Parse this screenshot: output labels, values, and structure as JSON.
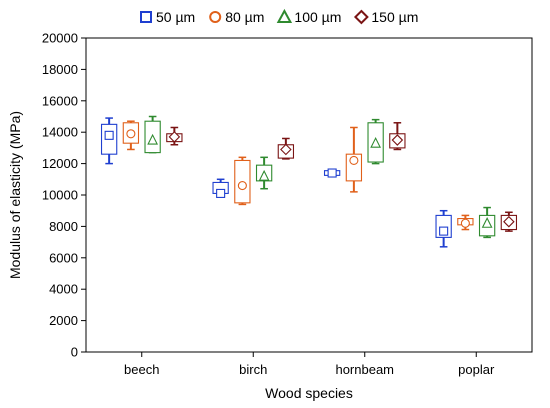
{
  "chart_data": {
    "type": "box",
    "title": "",
    "xlabel": "Wood species",
    "ylabel": "Modulus of elasticity  (MPa)",
    "ylim": [
      0,
      20000
    ],
    "yticks": [
      0,
      2000,
      4000,
      6000,
      8000,
      10000,
      12000,
      14000,
      16000,
      18000,
      20000
    ],
    "ytick_labels": [
      "0",
      "2000",
      "4000",
      "6000",
      "8000",
      "10000",
      "12000",
      "14000",
      "16000",
      "18000",
      "20000"
    ],
    "grid": false,
    "legend_position": "top",
    "categories": [
      "beech",
      "birch",
      "hornbeam",
      "poplar"
    ],
    "series": [
      {
        "name": "50 µm",
        "color": "#1f3fd0",
        "marker": "square",
        "boxes": [
          {
            "min": 12000,
            "q1": 12600,
            "median": 13800,
            "q3": 14500,
            "max": 14900
          },
          {
            "min": 10000,
            "q1": 10100,
            "median": 10100,
            "q3": 10800,
            "max": 11000
          },
          {
            "min": 11200,
            "q1": 11250,
            "median": 11400,
            "q3": 11550,
            "max": 11600
          },
          {
            "min": 6700,
            "q1": 7300,
            "median": 7700,
            "q3": 8700,
            "max": 9000
          }
        ]
      },
      {
        "name": "80 µm",
        "color": "#e0601a",
        "marker": "circle",
        "boxes": [
          {
            "min": 12900,
            "q1": 13300,
            "median": 13900,
            "q3": 14600,
            "max": 14700
          },
          {
            "min": 9400,
            "q1": 9500,
            "median": 10600,
            "q3": 12200,
            "max": 12400
          },
          {
            "min": 10200,
            "q1": 10900,
            "median": 12200,
            "q3": 12600,
            "max": 14300
          },
          {
            "min": 7800,
            "q1": 8100,
            "median": 8200,
            "q3": 8500,
            "max": 8700
          }
        ]
      },
      {
        "name": "100 µm",
        "color": "#2f8a2f",
        "marker": "triangle",
        "boxes": [
          {
            "min": 12700,
            "q1": 12700,
            "median": 13500,
            "q3": 14700,
            "max": 15000
          },
          {
            "min": 10400,
            "q1": 10900,
            "median": 11200,
            "q3": 11900,
            "max": 12400
          },
          {
            "min": 12000,
            "q1": 12100,
            "median": 13300,
            "q3": 14600,
            "max": 14800
          },
          {
            "min": 7300,
            "q1": 7400,
            "median": 8200,
            "q3": 8700,
            "max": 9200
          }
        ]
      },
      {
        "name": "150 µm",
        "color": "#7a1414",
        "marker": "diamond",
        "boxes": [
          {
            "min": 13200,
            "q1": 13400,
            "median": 13700,
            "q3": 13900,
            "max": 14300
          },
          {
            "min": 12300,
            "q1": 12350,
            "median": 12900,
            "q3": 13200,
            "max": 13600
          },
          {
            "min": 12900,
            "q1": 13000,
            "median": 13500,
            "q3": 13900,
            "max": 14600
          },
          {
            "min": 7700,
            "q1": 7800,
            "median": 8300,
            "q3": 8700,
            "max": 8900
          }
        ]
      }
    ]
  }
}
